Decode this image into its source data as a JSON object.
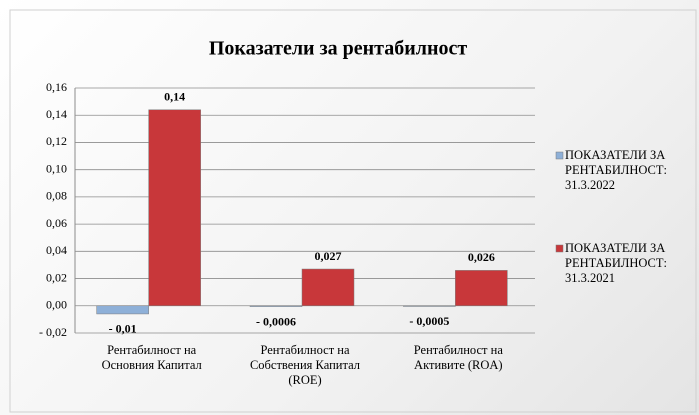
{
  "chart_data": {
    "type": "bar",
    "title": "Показатели  за  рентабилност",
    "categories": [
      "Рентабилност на Основния Капитал",
      "Рентабилност на Собствения Капитал (ROE)",
      "Рентабилност на Активите (ROA)"
    ],
    "series": [
      {
        "name": "ПОКАЗАТЕЛИ ЗА РЕНТАБИЛНОСТ: 31.3.2022",
        "color": "#8eb0d8",
        "values": [
          -0.006,
          -0.0006,
          -0.0005
        ],
        "value_labels": [
          "- 0,01",
          "- 0,0006",
          "- 0,0005"
        ]
      },
      {
        "name": "ПОКАЗАТЕЛИ ЗА РЕНТАБИЛНОСТ: 31.3.2021",
        "color": "#c8373a",
        "values": [
          0.144,
          0.027,
          0.026
        ],
        "value_labels": [
          "0,14",
          "0,027",
          "0,026"
        ]
      }
    ],
    "ylim": [
      -0.02,
      0.16
    ],
    "yticks": [
      {
        "value": -0.02,
        "label": "- 0,02"
      },
      {
        "value": 0,
        "label": "0,00"
      },
      {
        "value": 0.02,
        "label": "0,02"
      },
      {
        "value": 0.04,
        "label": "0,04"
      },
      {
        "value": 0.06,
        "label": "0,06"
      },
      {
        "value": 0.08,
        "label": "0,08"
      },
      {
        "value": 0.1,
        "label": "0,10"
      },
      {
        "value": 0.12,
        "label": "0,12"
      },
      {
        "value": 0.14,
        "label": "0,14"
      },
      {
        "value": 0.16,
        "label": "0,16"
      }
    ],
    "grid": true,
    "legend": "right"
  }
}
